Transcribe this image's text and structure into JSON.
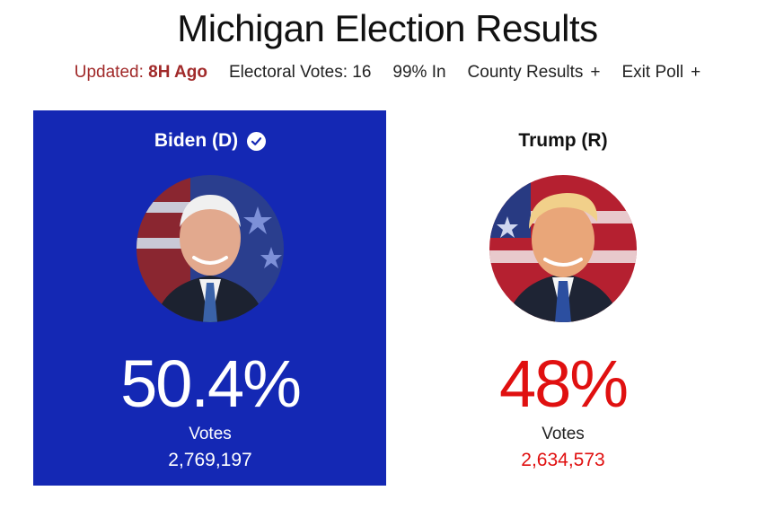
{
  "header": {
    "title": "Michigan Election Results",
    "updated_label": "Updated:",
    "updated_value": "8H Ago",
    "electoral_votes": "Electoral Votes: 16",
    "reporting": "99% In",
    "county_results": "County Results",
    "exit_poll": "Exit Poll",
    "expand_symbol": "+"
  },
  "candidates": [
    {
      "name": "Biden (D)",
      "winner": true,
      "percent": "50.4%",
      "votes_label": "Votes",
      "votes": "2,769,197",
      "color": "#1428b4"
    },
    {
      "name": "Trump (R)",
      "winner": false,
      "percent": "48%",
      "votes_label": "Votes",
      "votes": "2,634,573",
      "color": "#e01010"
    }
  ],
  "icons": {
    "winner": "check-circle-icon",
    "expand": "plus-icon"
  }
}
